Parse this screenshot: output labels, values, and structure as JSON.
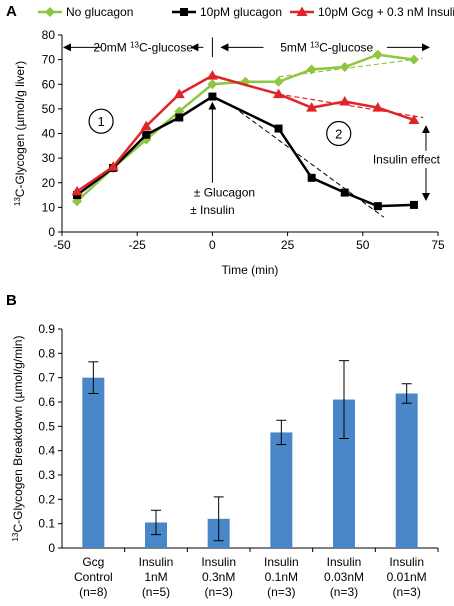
{
  "chart_data": [
    {
      "panel": "A",
      "type": "line",
      "xlabel": "Time (min)",
      "ylabel": "13C-Glycogen (µmol/g liver)",
      "xlim": [
        -50,
        75
      ],
      "ylim": [
        0,
        80
      ],
      "xticks": [
        -50,
        -25,
        0,
        25,
        50,
        75
      ],
      "yticks": [
        0,
        10,
        20,
        30,
        40,
        50,
        60,
        70,
        80
      ],
      "legend_position": "top",
      "series": [
        {
          "name": "No glucagon",
          "color": "#8dc63f",
          "marker": "diamond",
          "x": [
            -45,
            -33,
            -22,
            -11,
            0,
            11,
            22,
            33,
            44,
            55,
            67
          ],
          "y": [
            12.5,
            26,
            37.5,
            49,
            60,
            61,
            61,
            66,
            67,
            72,
            70
          ]
        },
        {
          "name": "10pM glucagon",
          "color": "#000000",
          "marker": "square",
          "x": [
            -45,
            -33,
            -22,
            -11,
            0,
            22,
            33,
            44,
            55,
            67
          ],
          "y": [
            15,
            26,
            39.5,
            46.5,
            55,
            42,
            22,
            16,
            10.5,
            11
          ]
        },
        {
          "name": "10pM Gcg + 0.3 nM Insulin",
          "color": "#e0242a",
          "marker": "triangle",
          "x": [
            -45,
            -33,
            -22,
            -11,
            0,
            22,
            33,
            44,
            55,
            67
          ],
          "y": [
            16.5,
            26.5,
            43,
            56,
            63.5,
            56,
            50.5,
            53,
            50.5,
            45.5
          ]
        }
      ],
      "annotations": {
        "left_phase": "20mM",
        "left_phase_suffix": "C-glucose",
        "right_phase": "5mM",
        "right_phase_suffix": "C-glucose",
        "isotope": "13",
        "circle_1": "1",
        "circle_2": "2",
        "treatment_line1": "± Glucagon",
        "treatment_line2": "± Insulin",
        "insulin_effect": "Insulin effect"
      },
      "panel_label": "A"
    },
    {
      "panel": "B",
      "type": "bar",
      "ylabel": "13C-Glycogen Breakdown (µmol/g/min)",
      "ylim": [
        0,
        0.9
      ],
      "yticks": [
        "0",
        "0.1",
        "0.2",
        "0.3",
        "0.4",
        "0.5",
        "0.6",
        "0.7",
        "0.8",
        "0.9"
      ],
      "bar_color": "#4a87c8",
      "categories": [
        [
          "Gcg",
          "Control",
          "(n=8)"
        ],
        [
          "Insulin",
          "1nM",
          "(n=5)"
        ],
        [
          "Insulin",
          "0.3nM",
          "(n=3)"
        ],
        [
          "Insulin",
          "0.1nM",
          "(n=3)"
        ],
        [
          "Insulin",
          "0.03nM",
          "(n=3)"
        ],
        [
          "Insulin",
          "0.01nM",
          "(n=3)"
        ]
      ],
      "values": [
        0.7,
        0.105,
        0.12,
        0.475,
        0.61,
        0.635
      ],
      "error": [
        0.065,
        0.05,
        0.09,
        0.05,
        0.16,
        0.04
      ],
      "panel_label": "B"
    }
  ]
}
